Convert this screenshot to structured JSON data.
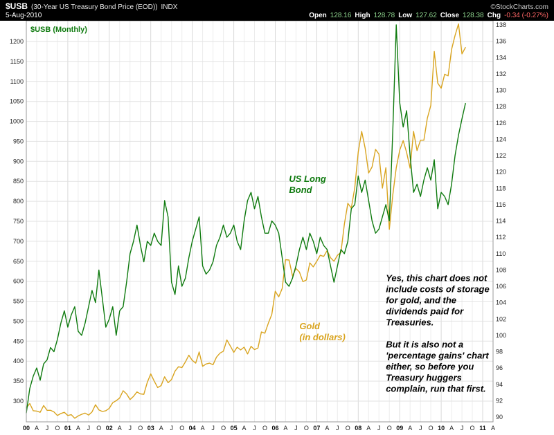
{
  "header": {
    "symbol": "$USB",
    "description": "(30-Year US Treasury Bond Price (EOD))",
    "exchange": "INDX",
    "source": "©StockCharts.com",
    "date": "5-Aug-2010",
    "quote": {
      "open_label": "Open",
      "open": "128.16",
      "high_label": "High",
      "high": "128.78",
      "low_label": "Low",
      "low": "127.62",
      "close_label": "Close",
      "close": "128.38",
      "chg_label": "Chg",
      "chg": "-0.34 (-0.27%)"
    }
  },
  "chart_data": {
    "type": "line",
    "legend": "$USB (Monthly)",
    "x_start": "Jan-2000",
    "x_data_end": "Aug-2010",
    "x_axis_end": "Apr-2011",
    "x_tick_labels": [
      "00",
      "A",
      "J",
      "O",
      "01",
      "A",
      "J",
      "O",
      "02",
      "A",
      "J",
      "O",
      "03",
      "A",
      "J",
      "O",
      "04",
      "A",
      "J",
      "O",
      "05",
      "A",
      "J",
      "O",
      "06",
      "A",
      "J",
      "O",
      "07",
      "A",
      "J",
      "O",
      "08",
      "A",
      "J",
      "O",
      "09",
      "A",
      "J",
      "O",
      "10",
      "A",
      "J",
      "O",
      "11",
      "A"
    ],
    "left_axis": {
      "min": 300,
      "max": 1200,
      "tick_step": 50
    },
    "right_axis": {
      "min": 90,
      "max": 138,
      "tick_step": 2
    },
    "grid": "on",
    "series": [
      {
        "name": "Gold (in dollars)",
        "axis": "left",
        "color": "#D9A41F",
        "values": [
          283,
          294,
          276,
          275,
          272,
          289,
          277,
          277,
          273,
          264,
          269,
          272,
          264,
          266,
          257,
          263,
          267,
          270,
          265,
          273,
          291,
          278,
          274,
          276,
          282,
          296,
          301,
          308,
          326,
          318,
          304,
          312,
          323,
          318,
          317,
          347,
          368,
          350,
          334,
          339,
          361,
          346,
          354,
          375,
          386,
          384,
          398,
          415,
          402,
          395,
          423,
          387,
          393,
          395,
          391,
          410,
          420,
          425,
          453,
          438,
          422,
          435,
          428,
          435,
          418,
          437,
          429,
          433,
          473,
          470,
          495,
          517,
          575,
          561,
          582,
          654,
          653,
          613,
          632,
          623,
          599,
          603,
          646,
          636,
          650,
          665,
          662,
          677,
          659,
          650,
          665,
          672,
          743,
          795,
          783,
          834,
          923,
          975,
          933,
          871,
          886,
          930,
          918,
          833,
          884,
          730,
          816,
          884,
          928,
          952,
          922,
          883,
          975,
          927,
          953,
          953,
          1008,
          1040,
          1175,
          1096,
          1083,
          1118,
          1114,
          1180,
          1215,
          1244,
          1169,
          1185
        ]
      },
      {
        "name": "US Long Bond",
        "axis": "right",
        "color": "#0E7A0E",
        "values": [
          90.5,
          93.5,
          95,
          96,
          94.5,
          96.5,
          97,
          98.5,
          98,
          99.5,
          101.5,
          103,
          101,
          102.5,
          103.5,
          100.5,
          100,
          101.5,
          103.5,
          105.5,
          104,
          108,
          104.5,
          101,
          102,
          103.5,
          100,
          103,
          103.5,
          106.5,
          110,
          111.5,
          113.5,
          111,
          109,
          111.5,
          111,
          112.5,
          111.5,
          111,
          116.5,
          114.5,
          106.5,
          105,
          108.5,
          106,
          107,
          109.5,
          111.5,
          113,
          114.5,
          108.5,
          107.5,
          108,
          109,
          111,
          112,
          113.5,
          112,
          112.5,
          113.5,
          111.5,
          110.5,
          114,
          116.5,
          117.5,
          115.5,
          117,
          114.5,
          112.5,
          112.5,
          114,
          113.5,
          112.5,
          109.5,
          106.5,
          106,
          107,
          108.5,
          110.5,
          112,
          110.5,
          112.5,
          111.5,
          110,
          112,
          111,
          110.5,
          108.5,
          106.5,
          108.5,
          110.5,
          110,
          111.5,
          115.5,
          116,
          119.5,
          117.5,
          119,
          116.5,
          114,
          112.5,
          113,
          114.5,
          116,
          114,
          125,
          138,
          128.5,
          125.5,
          127.5,
          122,
          117.5,
          118.5,
          117,
          119,
          120.5,
          119,
          121.5,
          115.5,
          117.5,
          117,
          116,
          118.5,
          122,
          124.5,
          126.5,
          128.38
        ]
      }
    ],
    "annotations": [
      {
        "id": "us-long-bond-label",
        "lines": [
          "US Long",
          "Bond"
        ],
        "color": "#0E7A0E",
        "x_month": 76,
        "y_value": 118.8,
        "axis": "right"
      },
      {
        "id": "gold-label",
        "lines": [
          "Gold",
          "(in dollars)"
        ],
        "color": "#D9A41F",
        "x_month": 79,
        "y_value": 480,
        "axis": "left"
      },
      {
        "id": "commentary",
        "lines": [
          "Yes, this chart does not",
          "include costs of storage",
          "for gold, and the",
          "dividends paid for",
          "Treasuries.",
          "",
          "But it is also not a",
          "'percentage gains' chart",
          "either, so before you",
          "Treasury huggers",
          "complain, run that first."
        ],
        "color": "#000000",
        "x_month": 104,
        "y_value": 600,
        "axis": "left"
      }
    ]
  }
}
